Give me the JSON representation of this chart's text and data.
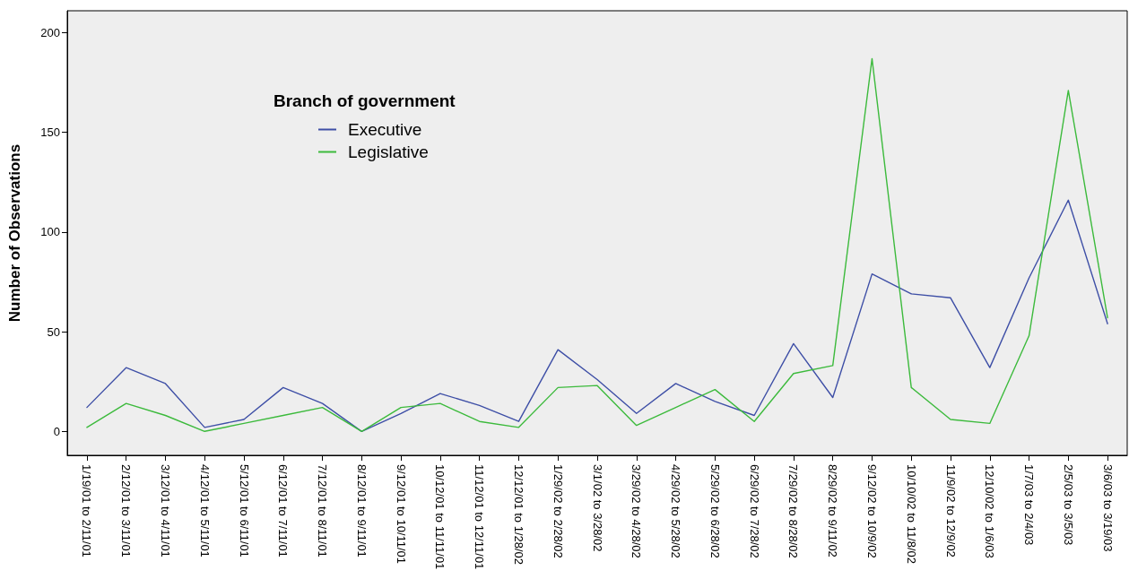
{
  "chart_data": {
    "type": "line",
    "ylabel": "Number of Observations",
    "legend_title": "Branch of government",
    "legend": "top left",
    "grid": false,
    "marker": "none",
    "line_style": "solid",
    "categories": [
      "1/19/01 to 2/11/01",
      "2/12/01 to 3/11/01",
      "3/12/01 to 4/11/01",
      "4/12/01 to 5/11/01",
      "5/12/01 to 6/11/01",
      "6/12/01 to 7/11/01",
      "7/12/01 to 8/11/01",
      "8/12/01 to 9/11/01",
      "9/12/01 to 10/11/01",
      "10/12/01 to 11/11/01",
      "11/12/01 to 12/11/01",
      "12/12/01 to 1/28/02",
      "1/29/02 to 2/28/02",
      "3/1/02 to 3/28/02",
      "3/29/02 to 4/28/02",
      "4/29/02 to 5/28/02",
      "5/29/02 to 6/28/02",
      "6/29/02 to 7/28/02",
      "7/29/02 to 8/28/02",
      "8/29/02 to 9/11/02",
      "9/12/02 to 10/9/02",
      "10/10/02 to 11/8/02",
      "11/9/02 to 12/9/02",
      "12/10/02 to 1/6/03",
      "1/7/03 to 2/4/03",
      "2/5/03 to 3/5/03",
      "3/6/03 to 3/19/03"
    ],
    "series": [
      {
        "name": "Executive",
        "color": "#3e4fa6",
        "values": [
          12,
          32,
          24,
          2,
          6,
          22,
          14,
          0,
          9,
          19,
          13,
          5,
          41,
          26,
          9,
          24,
          15,
          8,
          44,
          17,
          79,
          69,
          67,
          32,
          77,
          116,
          54
        ]
      },
      {
        "name": "Legislative",
        "color": "#3cba3c",
        "values": [
          2,
          14,
          8,
          0,
          4,
          8,
          12,
          0,
          12,
          14,
          5,
          2,
          22,
          23,
          3,
          12,
          21,
          5,
          29,
          33,
          187,
          22,
          6,
          4,
          48,
          171,
          57
        ]
      }
    ],
    "ylim": [
      -12,
      211
    ],
    "yticks": [
      0,
      50,
      100,
      150,
      200
    ]
  }
}
